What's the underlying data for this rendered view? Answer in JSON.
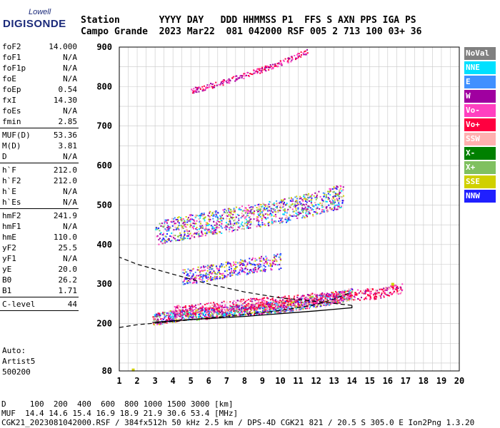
{
  "logo": {
    "top": "Lowell",
    "main": "DIGISONDE"
  },
  "header": {
    "row1": "Station       YYYY DAY   DDD HHMMSS P1  FFS S AXN PPS IGA PS",
    "row2": "Campo Grande  2023 Mar22  081 042000 RSF 005 2 713 100 03+ 36"
  },
  "params": [
    {
      "label": "foF2",
      "value": "14.000"
    },
    {
      "label": "foF1",
      "value": "N/A"
    },
    {
      "label": "foF1p",
      "value": "N/A"
    },
    {
      "label": "foE",
      "value": "N/A"
    },
    {
      "label": "foEp",
      "value": "0.54"
    },
    {
      "label": "fxI",
      "value": "14.30"
    },
    {
      "label": "foEs",
      "value": "N/A"
    },
    {
      "label": "fmin",
      "value": "2.85"
    },
    {
      "sep": true
    },
    {
      "label": "MUF(D)",
      "value": "53.36"
    },
    {
      "label": "M(D)",
      "value": "3.81"
    },
    {
      "label": "D",
      "value": "N/A"
    },
    {
      "sep": true
    },
    {
      "label": "h`F",
      "value": "212.0"
    },
    {
      "label": "h`F2",
      "value": "212.0"
    },
    {
      "label": "h`E",
      "value": "N/A"
    },
    {
      "label": "h`Es",
      "value": "N/A"
    },
    {
      "sep": true
    },
    {
      "label": "hmF2",
      "value": "241.9"
    },
    {
      "label": "hmF1",
      "value": "N/A"
    },
    {
      "label": "hmE",
      "value": "110.0"
    },
    {
      "label": "yF2",
      "value": "25.5"
    },
    {
      "label": "yF1",
      "value": "N/A"
    },
    {
      "label": "yE",
      "value": "20.0"
    },
    {
      "label": "B0",
      "value": "26.2"
    },
    {
      "label": "B1",
      "value": "1.71"
    },
    {
      "sep": true
    },
    {
      "label": "C-level",
      "value": "44"
    },
    {
      "sep": true
    }
  ],
  "auto": [
    "Auto:",
    "Artist5",
    "500200"
  ],
  "legend": [
    {
      "label": "NoVal",
      "color": "#808080"
    },
    {
      "label": "NNE",
      "color": "#00e0ff"
    },
    {
      "label": "E",
      "color": "#4090ff"
    },
    {
      "label": "W",
      "color": "#a000a0"
    },
    {
      "label": "Vo-",
      "color": "#ff40c0"
    },
    {
      "label": "Vo+",
      "color": "#ff0040"
    },
    {
      "label": "SSW",
      "color": "#ffb0b0"
    },
    {
      "label": "X-",
      "color": "#008000"
    },
    {
      "label": "X+",
      "color": "#80c060"
    },
    {
      "label": "SSE",
      "color": "#d0d000"
    },
    {
      "label": "NNW",
      "color": "#2020ff"
    }
  ],
  "chart_data": {
    "type": "scatter",
    "xlim": [
      1,
      20
    ],
    "ylim": [
      80,
      900
    ],
    "x_ticks": [
      1,
      2,
      3,
      4,
      5,
      6,
      7,
      8,
      9,
      10,
      11,
      12,
      13,
      14,
      15,
      16,
      17,
      18,
      19,
      20
    ],
    "y_ticks": [
      80,
      200,
      300,
      400,
      500,
      600,
      700,
      800,
      900
    ],
    "grid": true,
    "profile_line": [
      [
        2.85,
        203
      ],
      [
        5,
        210
      ],
      [
        8,
        218
      ],
      [
        10,
        225
      ],
      [
        12,
        232
      ],
      [
        13,
        236
      ],
      [
        14,
        240
      ],
      [
        14,
        246
      ],
      [
        12,
        256
      ],
      [
        10,
        265
      ],
      [
        8,
        280
      ],
      [
        6,
        300
      ],
      [
        4,
        325
      ],
      [
        2,
        350
      ],
      [
        1.0,
        368
      ]
    ],
    "lower_dashed": [
      [
        1.0,
        190
      ],
      [
        2,
        197
      ],
      [
        4,
        205
      ],
      [
        6,
        214
      ],
      [
        8,
        223
      ],
      [
        10,
        233
      ],
      [
        12,
        248
      ],
      [
        13,
        262
      ],
      [
        14,
        280
      ]
    ],
    "trace_F2_ordinary": [
      [
        2.85,
        212
      ],
      [
        4,
        220
      ],
      [
        6,
        228
      ],
      [
        8,
        236
      ],
      [
        10,
        244
      ],
      [
        11,
        250
      ],
      [
        12,
        258
      ],
      [
        13,
        266
      ],
      [
        14,
        276
      ]
    ],
    "trace_F2_extra": [
      [
        4,
        232
      ],
      [
        6,
        240
      ],
      [
        8,
        250
      ],
      [
        10,
        256
      ],
      [
        12,
        265
      ],
      [
        14,
        272
      ],
      [
        15,
        276
      ],
      [
        16,
        282
      ],
      [
        16.8,
        292
      ]
    ],
    "trace_2F": [
      [
        3,
        430
      ],
      [
        4,
        440
      ],
      [
        6,
        455
      ],
      [
        8,
        470
      ],
      [
        10,
        485
      ],
      [
        12,
        505
      ],
      [
        13.5,
        525
      ]
    ],
    "trace_3F": [
      [
        5,
        790
      ],
      [
        7,
        815
      ],
      [
        9,
        845
      ],
      [
        10.5,
        870
      ],
      [
        11.5,
        890
      ]
    ],
    "secondary_F_band": [
      [
        4.5,
        318
      ],
      [
        6,
        330
      ],
      [
        8,
        345
      ],
      [
        10,
        360
      ]
    ],
    "isolated_points": [
      [
        1.7,
        86
      ],
      [
        16.2,
        303
      ]
    ]
  },
  "bottom": {
    "d_row": "D     100  200  400  600  800 1000 1500 3000 [km]",
    "muf_row": "MUF  14.4 14.6 15.4 16.9 18.9 21.9 30.6 53.4 [MHz]",
    "file_row": "CGK21_2023081042000.RSF / 384fx512h 50 kHz 2.5 km / DPS-4D CGK21 821 / 20.5 S 305.0 E Ion2Png 1.3.20"
  }
}
